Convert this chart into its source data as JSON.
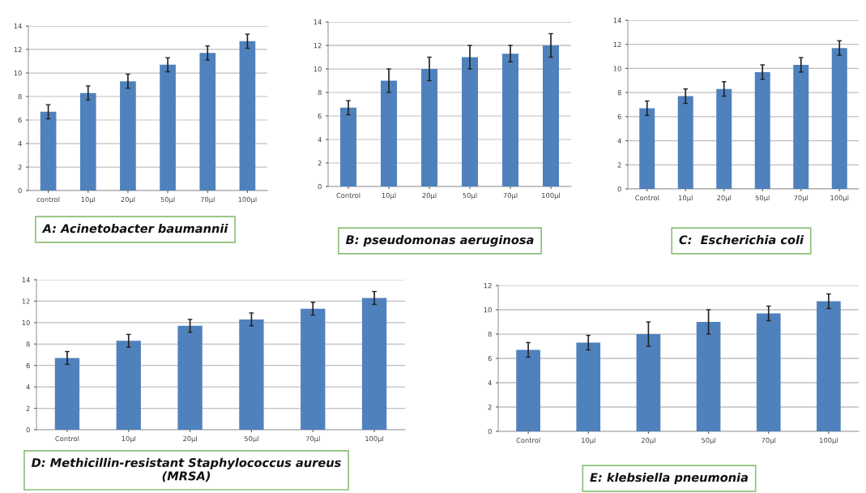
{
  "chart_data": [
    {
      "type": "bar",
      "title": "A: Acinetobacter baumannii",
      "categories": [
        "control",
        "10μl",
        "20μl",
        "50μl",
        "70μl",
        "100μl"
      ],
      "values": [
        6.7,
        8.3,
        9.3,
        10.7,
        11.7,
        12.7
      ],
      "errors": [
        0.6,
        0.6,
        0.6,
        0.6,
        0.6,
        0.6
      ],
      "color": "#4f81bd",
      "ylim": [
        0,
        14
      ],
      "yticks": [
        0,
        2,
        4,
        6,
        8,
        10,
        12,
        14
      ],
      "grid": "y"
    },
    {
      "type": "bar",
      "title": "B: pseudomonas aeruginosa",
      "categories": [
        "Control",
        "10μl",
        "20μl",
        "50μl",
        "70μl",
        "100μl"
      ],
      "values": [
        6.7,
        9,
        10,
        11,
        11.3,
        12
      ],
      "errors": [
        0.6,
        1,
        1,
        1,
        0.7,
        1
      ],
      "color": "#4f81bd",
      "ylim": [
        0,
        14
      ],
      "yticks": [
        0,
        2,
        4,
        6,
        8,
        10,
        12,
        14
      ],
      "grid": "y"
    },
    {
      "type": "bar",
      "title": "C:  Escherichia coli",
      "categories": [
        "Control",
        "10μl",
        "20μl",
        "50μl",
        "70μl",
        "100μl"
      ],
      "values": [
        6.7,
        7.7,
        8.3,
        9.7,
        10.3,
        11.7
      ],
      "errors": [
        0.6,
        0.6,
        0.6,
        0.6,
        0.6,
        0.6
      ],
      "color": "#4f81bd",
      "ylim": [
        0,
        14
      ],
      "yticks": [
        0,
        2,
        4,
        6,
        8,
        10,
        12,
        14
      ],
      "grid": "y"
    },
    {
      "type": "bar",
      "title": "D: Methicillin-resistant Staphylococcus aureus (MRSA)",
      "categories": [
        "Control",
        "10μl",
        "20μl",
        "50μl",
        "70μl",
        "100μl"
      ],
      "values": [
        6.7,
        8.3,
        9.7,
        10.3,
        11.3,
        12.3
      ],
      "errors": [
        0.6,
        0.6,
        0.6,
        0.6,
        0.6,
        0.6
      ],
      "color": "#4f81bd",
      "ylim": [
        0,
        14
      ],
      "yticks": [
        0,
        2,
        4,
        6,
        8,
        10,
        12,
        14
      ],
      "grid": "y"
    },
    {
      "type": "bar",
      "title": "E: klebsiella pneumonia",
      "categories": [
        "Control",
        "10μl",
        "20μl",
        "50μl",
        "70μl",
        "100μl"
      ],
      "values": [
        6.7,
        7.3,
        8,
        9,
        9.7,
        10.7
      ],
      "errors": [
        0.6,
        0.6,
        1,
        1,
        0.6,
        0.6
      ],
      "color": "#4f81bd",
      "ylim": [
        0,
        12
      ],
      "yticks": [
        0,
        2,
        4,
        6,
        8,
        10,
        12
      ],
      "grid": "y"
    }
  ]
}
